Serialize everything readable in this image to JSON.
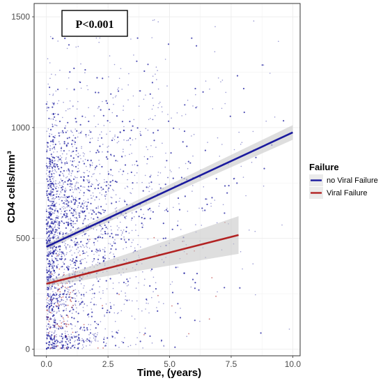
{
  "chart_data": {
    "type": "scatter",
    "title": "",
    "xlabel": "Time, (years)",
    "ylabel": "CD4 cells/mm³",
    "xlim": [
      -0.5,
      10.3
    ],
    "ylim": [
      -30,
      1560
    ],
    "xticks": [
      0,
      2.5,
      5,
      7.5,
      10
    ],
    "xtick_labels": [
      "0.0",
      "2.5",
      "5.0",
      "7.5",
      "10.0"
    ],
    "yticks": [
      0,
      500,
      1000,
      1500
    ],
    "ytick_labels": [
      "0",
      "500",
      "1000",
      "1500"
    ],
    "grid": true,
    "legend": {
      "title": "Failure",
      "placement": "right",
      "entries": [
        "no Viral Failure",
        "Viral Failure"
      ]
    },
    "annotation": "P<0.001",
    "colors": {
      "no_viral_failure": "#1a1a9e",
      "viral_failure": "#b22222",
      "ribbon": "#c8c8c8",
      "grid": "#ebebeb"
    },
    "series": [
      {
        "name": "no Viral Failure",
        "kind": "scatter+linear-fit",
        "fit": {
          "x": [
            0,
            10
          ],
          "y": [
            462,
            978
          ]
        },
        "ci_band": {
          "x": [
            0,
            10
          ],
          "lower": [
            450,
            945
          ],
          "upper": [
            474,
            1011
          ]
        }
      },
      {
        "name": "Viral Failure",
        "kind": "scatter+linear-fit",
        "fit": {
          "x": [
            0,
            7.8
          ],
          "y": [
            295,
            515
          ]
        },
        "ci_band": {
          "x": [
            0,
            7.8
          ],
          "lower": [
            283,
            430
          ],
          "upper": [
            307,
            600
          ]
        }
      }
    ]
  }
}
